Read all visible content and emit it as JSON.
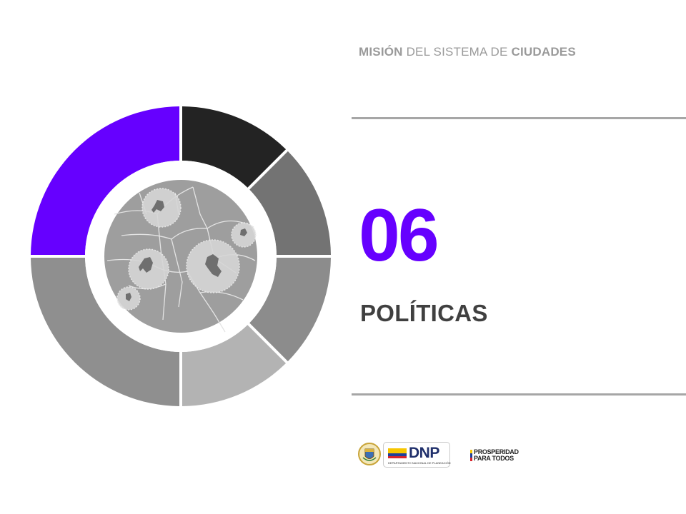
{
  "header": {
    "part1": "MISIÓN",
    "part2": " DEL SISTEMA DE ",
    "part3": "CIUDADES"
  },
  "section": {
    "number": "06",
    "title": "POLÍTICAS"
  },
  "colors": {
    "accent": "#6600ff",
    "segments": [
      "#232323",
      "#737373",
      "#8c8c8c",
      "#b3b3b3",
      "#8f8f8f",
      "#6600ff"
    ],
    "map": "#9e9e9e",
    "ring": "#ffffff"
  },
  "logos": {
    "dnp": "DNP",
    "dnp_subtitle": "DEPARTAMENTO NACIONAL DE PLANEACIÓN",
    "prosperidad_line1": "PROSPERIDAD",
    "prosperidad_line2": "PARA TODOS"
  },
  "icons": [
    "colombia-coat-of-arms-icon",
    "colombia-flag-icon",
    "colombia-map-icon"
  ]
}
